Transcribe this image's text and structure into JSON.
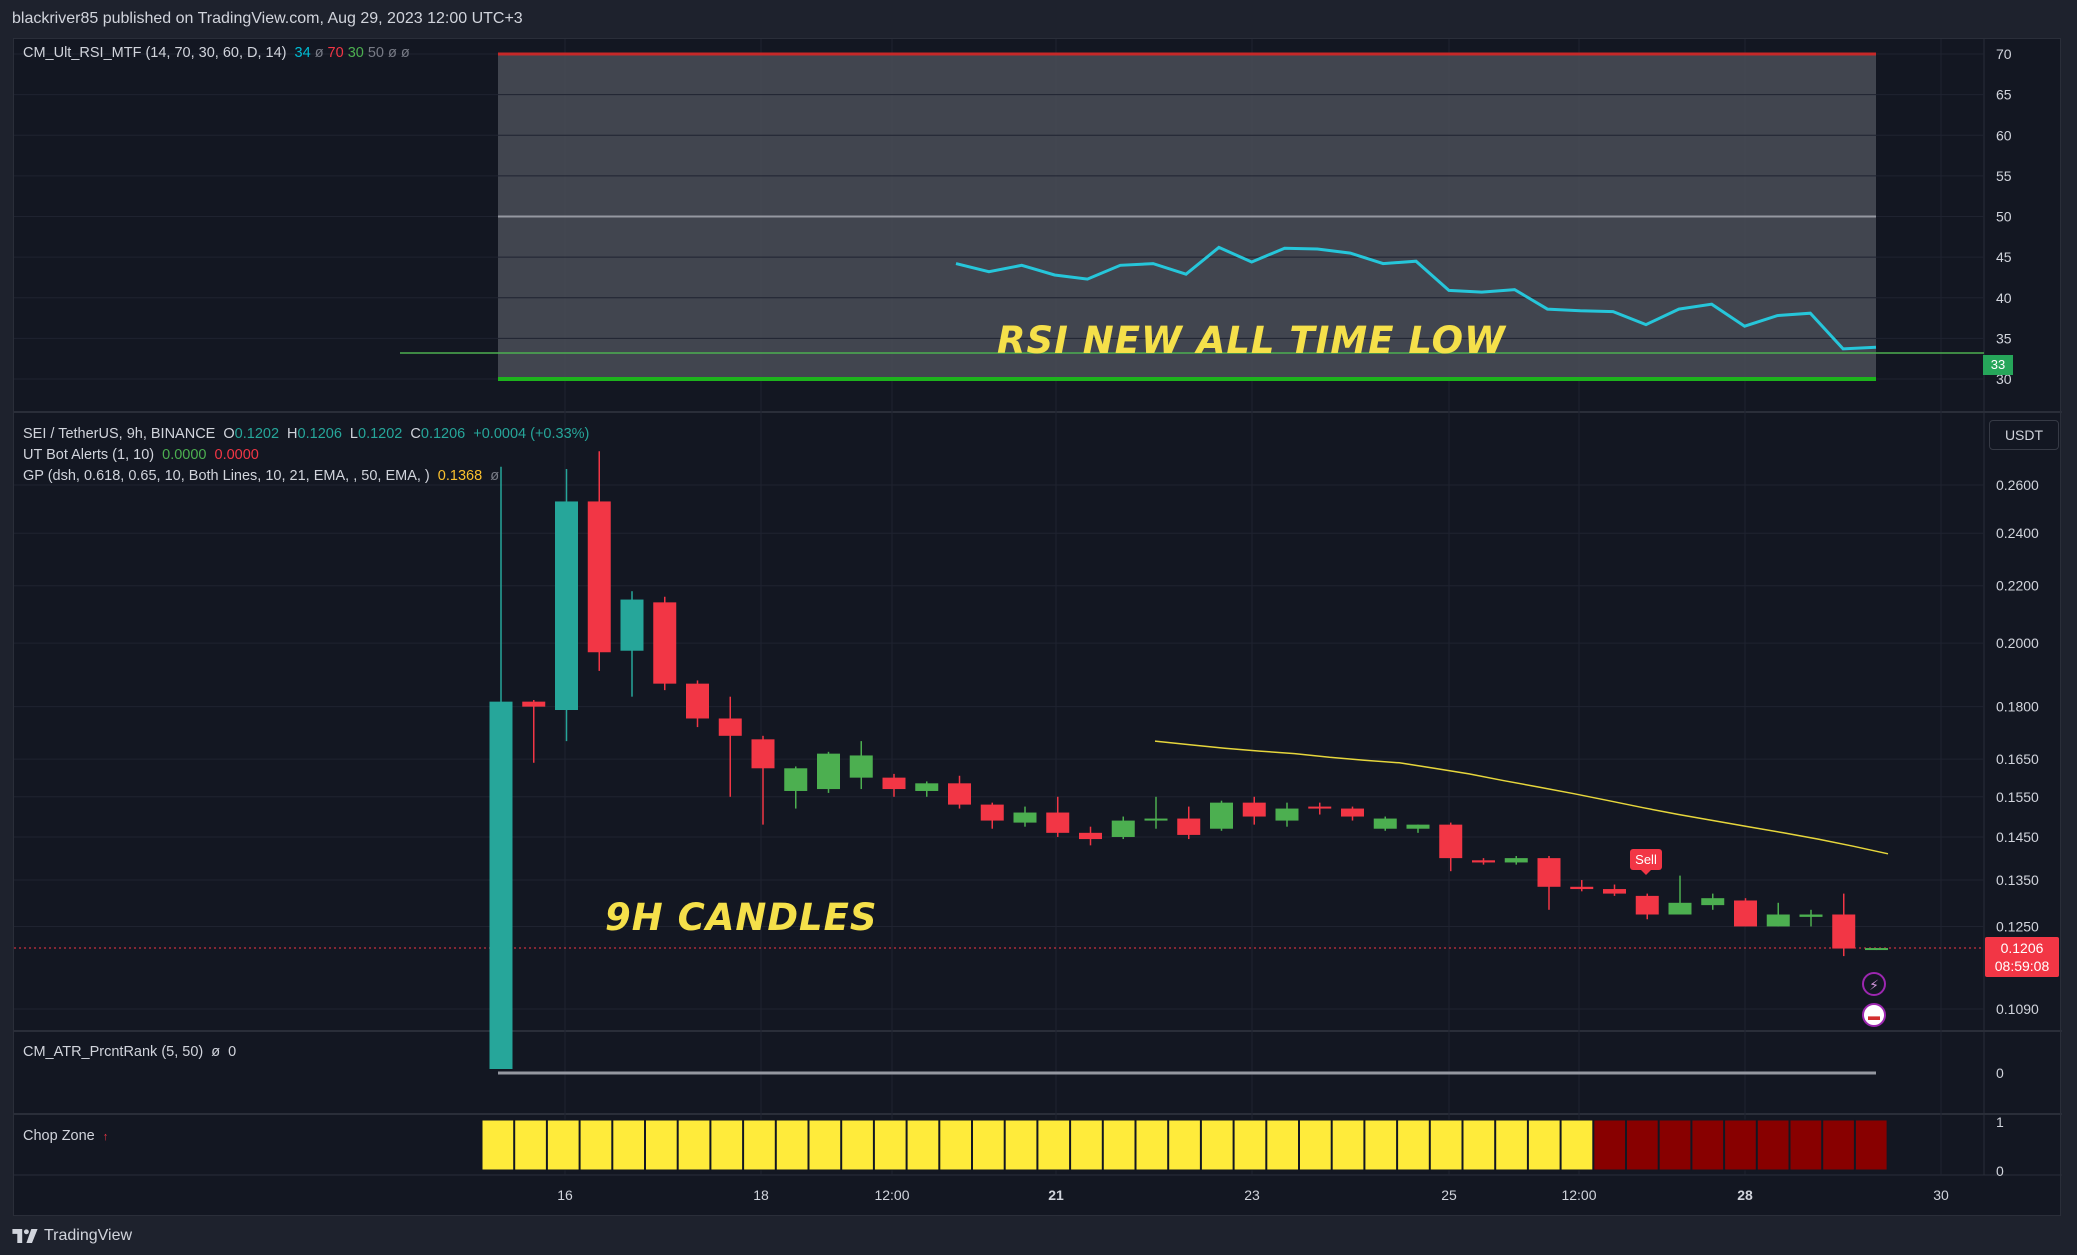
{
  "header": {
    "published_by": "blackriver85 published on TradingView.com, Aug 29, 2023 12:00 UTC+3"
  },
  "footer": {
    "brand": "TradingView"
  },
  "rsi_panel": {
    "title": "CM_Ult_RSI_MTF (14, 70, 30, 60, D, 14)",
    "values": [
      {
        "text": "34",
        "color": "#00bcd4"
      },
      {
        "text": "ø",
        "color": "#787b86"
      },
      {
        "text": "70",
        "color": "#f23645"
      },
      {
        "text": "30",
        "color": "#4caf50"
      },
      {
        "text": "50",
        "color": "#787b86"
      },
      {
        "text": "ø",
        "color": "#787b86"
      },
      {
        "text": "ø",
        "color": "#787b86"
      }
    ],
    "annotation": "RSI NEW ALL TIME LOW",
    "current_label": "33"
  },
  "price_panel": {
    "symbol": "SEI / TetherUS, 9h, BINANCE",
    "ohlc": {
      "o_label": "O",
      "o": "0.1202",
      "h_label": "H",
      "h": "0.1206",
      "l_label": "L",
      "l": "0.1202",
      "c_label": "C",
      "c": "0.1206",
      "change": "+0.0004 (+0.33%)"
    },
    "ut_bot": {
      "label": "UT Bot Alerts (1, 10)",
      "v1": "0.0000",
      "v2": "0.0000"
    },
    "gp": {
      "label": "GP (dsh, 0.618, 0.65, 10, Both Lines, 10, 21, EMA, , 50, EMA, )",
      "value": "0.1368",
      "extra": "ø"
    },
    "currency": "USDT",
    "last_price": "0.1206",
    "countdown": "08:59:08",
    "annotation": "9H CANDLES",
    "sell_label": "Sell"
  },
  "atr_panel": {
    "title": "CM_ATR_PrcntRank (5, 50)",
    "v1": "ø",
    "v2": "0",
    "axis_label": "0"
  },
  "chop_panel": {
    "title": "Chop Zone",
    "marker": "↑",
    "axis_top": "1",
    "axis_bottom": "0"
  },
  "colors": {
    "up": "#26a69a",
    "down": "#f23645",
    "green_candle": "#4caf50",
    "rsi_line": "#26c6da",
    "ema": "#e6d63c",
    "chop_yellow": "#ffeb3b",
    "chop_red": "#880000"
  },
  "chart_data": {
    "type": "candlestick",
    "time_axis_labels": [
      "16",
      "18",
      "12:00",
      "21",
      "23",
      "25",
      "12:00",
      "28",
      "30"
    ],
    "price_axis": [
      "0.2600",
      "0.2400",
      "0.2200",
      "0.2000",
      "0.1800",
      "0.1650",
      "0.1550",
      "0.1450",
      "0.1350",
      "0.1250",
      "0.1090"
    ],
    "rsi_axis": [
      "70",
      "65",
      "60",
      "55",
      "50",
      "45",
      "40",
      "35",
      "30"
    ],
    "rsi_levels": {
      "overbought": 70,
      "middle": 50,
      "oversold": 30
    },
    "rsi_new_low_level": 33.2,
    "candles": [
      {
        "o": 0.105,
        "h": 0.268,
        "l": 0.105,
        "c": 0.1815
      },
      {
        "o": 0.1815,
        "h": 0.182,
        "l": 0.164,
        "c": 0.18
      },
      {
        "o": 0.179,
        "h": 0.267,
        "l": 0.17,
        "c": 0.253
      },
      {
        "o": 0.253,
        "h": 0.275,
        "l": 0.191,
        "c": 0.197
      },
      {
        "o": 0.1975,
        "h": 0.218,
        "l": 0.183,
        "c": 0.215
      },
      {
        "o": 0.214,
        "h": 0.216,
        "l": 0.185,
        "c": 0.187
      },
      {
        "o": 0.187,
        "h": 0.188,
        "l": 0.174,
        "c": 0.1765
      },
      {
        "o": 0.1765,
        "h": 0.183,
        "l": 0.155,
        "c": 0.1715
      },
      {
        "o": 0.1705,
        "h": 0.1715,
        "l": 0.148,
        "c": 0.1625
      },
      {
        "o": 0.1565,
        "h": 0.163,
        "l": 0.152,
        "c": 0.1625
      },
      {
        "o": 0.157,
        "h": 0.167,
        "l": 0.156,
        "c": 0.1665
      },
      {
        "o": 0.16,
        "h": 0.17,
        "l": 0.157,
        "c": 0.166
      },
      {
        "o": 0.16,
        "h": 0.161,
        "l": 0.155,
        "c": 0.157
      },
      {
        "o": 0.1565,
        "h": 0.159,
        "l": 0.155,
        "c": 0.1585
      },
      {
        "o": 0.1585,
        "h": 0.1605,
        "l": 0.152,
        "c": 0.153
      },
      {
        "o": 0.153,
        "h": 0.1535,
        "l": 0.147,
        "c": 0.149
      },
      {
        "o": 0.1485,
        "h": 0.1525,
        "l": 0.1475,
        "c": 0.151
      },
      {
        "o": 0.151,
        "h": 0.155,
        "l": 0.145,
        "c": 0.146
      },
      {
        "o": 0.146,
        "h": 0.1475,
        "l": 0.143,
        "c": 0.1445
      },
      {
        "o": 0.145,
        "h": 0.15,
        "l": 0.1445,
        "c": 0.149
      },
      {
        "o": 0.149,
        "h": 0.155,
        "l": 0.147,
        "c": 0.1495
      },
      {
        "o": 0.1495,
        "h": 0.1525,
        "l": 0.1445,
        "c": 0.1455
      },
      {
        "o": 0.147,
        "h": 0.154,
        "l": 0.1465,
        "c": 0.1535
      },
      {
        "o": 0.1535,
        "h": 0.155,
        "l": 0.148,
        "c": 0.15
      },
      {
        "o": 0.149,
        "h": 0.1535,
        "l": 0.1475,
        "c": 0.152
      },
      {
        "o": 0.1525,
        "h": 0.1535,
        "l": 0.1505,
        "c": 0.152
      },
      {
        "o": 0.152,
        "h": 0.1525,
        "l": 0.149,
        "c": 0.15
      },
      {
        "o": 0.147,
        "h": 0.15,
        "l": 0.1465,
        "c": 0.1495
      },
      {
        "o": 0.147,
        "h": 0.148,
        "l": 0.146,
        "c": 0.148
      },
      {
        "o": 0.148,
        "h": 0.1485,
        "l": 0.137,
        "c": 0.14
      },
      {
        "o": 0.1395,
        "h": 0.14,
        "l": 0.1385,
        "c": 0.139
      },
      {
        "o": 0.139,
        "h": 0.1405,
        "l": 0.1385,
        "c": 0.14
      },
      {
        "o": 0.14,
        "h": 0.1405,
        "l": 0.1285,
        "c": 0.1335
      },
      {
        "o": 0.1335,
        "h": 0.135,
        "l": 0.1325,
        "c": 0.133
      },
      {
        "o": 0.133,
        "h": 0.134,
        "l": 0.1315,
        "c": 0.132
      },
      {
        "o": 0.1315,
        "h": 0.132,
        "l": 0.1265,
        "c": 0.1275
      },
      {
        "o": 0.1275,
        "h": 0.136,
        "l": 0.1275,
        "c": 0.13
      },
      {
        "o": 0.1295,
        "h": 0.132,
        "l": 0.1285,
        "c": 0.131
      },
      {
        "o": 0.1305,
        "h": 0.131,
        "l": 0.125,
        "c": 0.125
      },
      {
        "o": 0.125,
        "h": 0.13,
        "l": 0.125,
        "c": 0.1275
      },
      {
        "o": 0.127,
        "h": 0.1285,
        "l": 0.125,
        "c": 0.1275
      },
      {
        "o": 0.1275,
        "h": 0.132,
        "l": 0.119,
        "c": 0.1205
      },
      {
        "o": 0.1202,
        "h": 0.1206,
        "l": 0.1202,
        "c": 0.1206
      }
    ],
    "ema_line": [
      0.17,
      0.169,
      0.168,
      0.1672,
      0.1665,
      0.1655,
      0.1647,
      0.164,
      0.1625,
      0.161,
      0.1592,
      0.1575,
      0.1558,
      0.154,
      0.1522,
      0.1505,
      0.149,
      0.1475,
      0.146,
      0.1445,
      0.1428,
      0.141
    ],
    "rsi_line": [
      44.2,
      43.2,
      44.0,
      42.8,
      42.3,
      44.0,
      44.2,
      42.9,
      46.2,
      44.4,
      46.1,
      46.0,
      45.5,
      44.2,
      44.5,
      40.9,
      40.7,
      41.0,
      38.6,
      38.4,
      38.3,
      36.7,
      38.6,
      39.2,
      36.5,
      37.8,
      38.1,
      33.7,
      33.9
    ],
    "chop_zone": [
      "yellow",
      "yellow",
      "yellow",
      "yellow",
      "yellow",
      "yellow",
      "yellow",
      "yellow",
      "yellow",
      "yellow",
      "yellow",
      "yellow",
      "yellow",
      "yellow",
      "yellow",
      "yellow",
      "yellow",
      "yellow",
      "yellow",
      "yellow",
      "yellow",
      "yellow",
      "yellow",
      "yellow",
      "yellow",
      "yellow",
      "yellow",
      "yellow",
      "yellow",
      "yellow",
      "yellow",
      "yellow",
      "yellow",
      "yellow",
      "red",
      "red",
      "red",
      "red",
      "red",
      "red",
      "red",
      "red",
      "red"
    ]
  }
}
